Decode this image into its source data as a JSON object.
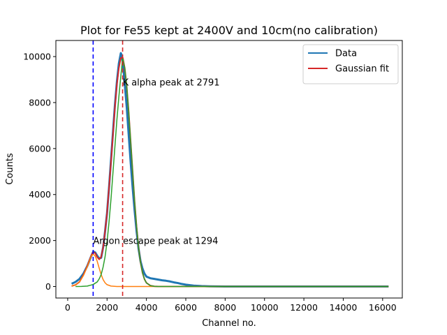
{
  "chart_data": {
    "type": "line",
    "title": "Plot for Fe55 kept at 2400V and 10cm(no calibration)",
    "xlabel": "Channel no.",
    "ylabel": "Counts",
    "xlim": [
      -600,
      17000
    ],
    "ylim": [
      -500,
      10700
    ],
    "xticks": [
      0,
      2000,
      4000,
      6000,
      8000,
      10000,
      12000,
      14000,
      16000
    ],
    "yticks": [
      0,
      2000,
      4000,
      6000,
      8000,
      10000
    ],
    "legend_position": "top-right",
    "series": [
      {
        "name": "Data",
        "color": "#1f77b4",
        "x": [
          200,
          400,
          600,
          800,
          1000,
          1200,
          1300,
          1400,
          1500,
          1600,
          1700,
          1800,
          1900,
          2000,
          2100,
          2200,
          2300,
          2400,
          2500,
          2600,
          2700,
          2750,
          2800,
          2900,
          3000,
          3100,
          3200,
          3300,
          3400,
          3500,
          3600,
          3700,
          3800,
          3900,
          4000,
          4200,
          4400,
          4600,
          4800,
          5000,
          5200,
          5400,
          5600,
          5800,
          6000,
          6400,
          6800,
          7200,
          7600,
          8000,
          9000,
          10000,
          12000,
          14000,
          16300
        ],
        "y": [
          120,
          200,
          330,
          560,
          900,
          1330,
          1520,
          1480,
          1340,
          1220,
          1250,
          1700,
          2400,
          3200,
          4300,
          5500,
          6700,
          7900,
          8900,
          9700,
          10150,
          10050,
          9700,
          8800,
          7800,
          6600,
          5400,
          4300,
          3300,
          2400,
          1650,
          1100,
          780,
          560,
          430,
          360,
          330,
          300,
          270,
          250,
          220,
          180,
          150,
          110,
          80,
          40,
          20,
          10,
          5,
          0,
          0,
          0,
          0,
          0,
          0
        ]
      },
      {
        "name": "Gaussian fit",
        "color": "#d62728",
        "x": [
          200,
          400,
          600,
          800,
          1000,
          1200,
          1300,
          1400,
          1500,
          1600,
          1700,
          1800,
          1900,
          2000,
          2100,
          2200,
          2300,
          2400,
          2500,
          2600,
          2700,
          2800,
          2900,
          3000,
          3100,
          3200,
          3300,
          3400,
          3500,
          3600,
          3700,
          3800,
          3900,
          4000,
          4200,
          4400,
          4600,
          5000,
          6000,
          8000,
          10000,
          12000,
          14000,
          16300
        ],
        "y": [
          20,
          70,
          200,
          500,
          900,
          1350,
          1500,
          1450,
          1280,
          1180,
          1280,
          1700,
          2400,
          3200,
          4300,
          5400,
          6600,
          7800,
          8800,
          9500,
          9950,
          9950,
          9500,
          8700,
          7600,
          6300,
          5000,
          3700,
          2600,
          1700,
          1050,
          600,
          320,
          160,
          40,
          10,
          2,
          0,
          0,
          0,
          0,
          0,
          0,
          0
        ]
      },
      {
        "name": "",
        "color": "#ff7f0e",
        "x": [
          200,
          400,
          600,
          800,
          1000,
          1100,
          1200,
          1294,
          1400,
          1500,
          1600,
          1700,
          1800,
          1900,
          2000,
          2200,
          2500,
          3000,
          4000,
          6000,
          8000,
          10000,
          12000,
          14000,
          16300
        ],
        "y": [
          20,
          70,
          200,
          480,
          870,
          1100,
          1320,
          1420,
          1320,
          1100,
          800,
          520,
          300,
          160,
          80,
          20,
          0,
          0,
          0,
          0,
          0,
          0,
          0,
          0,
          0
        ]
      },
      {
        "name": "",
        "color": "#2ca02c",
        "x": [
          400,
          700,
          1000,
          1300,
          1500,
          1600,
          1700,
          1800,
          1900,
          2000,
          2100,
          2200,
          2300,
          2400,
          2500,
          2600,
          2700,
          2791,
          2900,
          3000,
          3100,
          3200,
          3300,
          3400,
          3500,
          3600,
          3700,
          3800,
          3900,
          4000,
          4200,
          4400,
          4600,
          5000,
          6000,
          8000,
          10000,
          12000,
          14000,
          16300
        ],
        "y": [
          0,
          5,
          20,
          90,
          200,
          330,
          520,
          850,
          1300,
          1950,
          2800,
          3800,
          4950,
          6100,
          7250,
          8250,
          9150,
          9950,
          9500,
          8700,
          7600,
          6300,
          5000,
          3700,
          2600,
          1700,
          1050,
          600,
          320,
          160,
          40,
          10,
          2,
          0,
          0,
          0,
          0,
          0,
          0,
          0
        ]
      }
    ],
    "vlines": [
      {
        "x": 1294,
        "color": "#0000ff"
      },
      {
        "x": 2791,
        "color": "#d62728"
      }
    ],
    "annotations": [
      {
        "text": "K alpha peak at 2791",
        "x": 2791,
        "y": 8900
      },
      {
        "text": "Argon escape peak at 1294",
        "x": 1294,
        "y": 2000
      }
    ]
  }
}
